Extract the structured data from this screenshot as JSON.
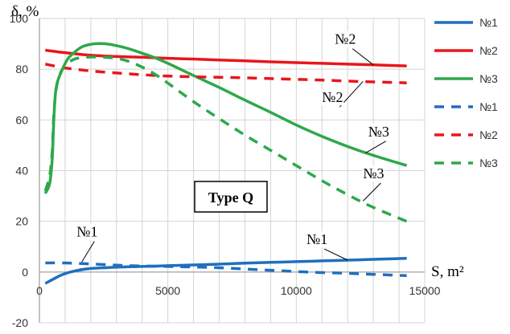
{
  "chart_data": {
    "type": "line",
    "ylabel": "δ, %",
    "xlabel": "S, m²",
    "xlim": [
      0,
      15000
    ],
    "ylim": [
      -20,
      100
    ],
    "x_ticks": [
      "0",
      "5000",
      "10000",
      "15000"
    ],
    "y_ticks": [
      "-20",
      "0",
      "20",
      "40",
      "60",
      "80",
      "100"
    ],
    "grid": "vertical lines every 1000, horizontal lines at major ticks",
    "legend_position": "right",
    "box_label": "Type Q",
    "colors": {
      "blue": "#1f6fbf",
      "red": "#e8161c",
      "green": "#2ea84a"
    },
    "series": [
      {
        "name": "№1",
        "color": "#1f6fbf",
        "dash": "solid",
        "points": [
          [
            230,
            -4.5
          ],
          [
            500,
            -3
          ],
          [
            900,
            -1
          ],
          [
            1400,
            0.5
          ],
          [
            2000,
            1.4
          ],
          [
            3000,
            1.9
          ],
          [
            4000,
            2.2
          ],
          [
            5000,
            2.5
          ],
          [
            6000,
            2.8
          ],
          [
            7000,
            3.1
          ],
          [
            8000,
            3.5
          ],
          [
            9000,
            3.8
          ],
          [
            10000,
            4.1
          ],
          [
            11000,
            4.4
          ],
          [
            12000,
            4.7
          ],
          [
            13000,
            5.0
          ],
          [
            14300,
            5.4
          ]
        ]
      },
      {
        "name": "№2",
        "color": "#e8161c",
        "dash": "solid",
        "points": [
          [
            230,
            87.5
          ],
          [
            1000,
            86.5
          ],
          [
            2000,
            85.5
          ],
          [
            3000,
            85
          ],
          [
            4000,
            84.7
          ],
          [
            5000,
            84.3
          ],
          [
            6000,
            84
          ],
          [
            7000,
            83.6
          ],
          [
            8000,
            83.3
          ],
          [
            9000,
            82.9
          ],
          [
            10000,
            82.6
          ],
          [
            11000,
            82.3
          ],
          [
            12000,
            82
          ],
          [
            13000,
            81.7
          ],
          [
            14300,
            81.3
          ]
        ]
      },
      {
        "name": "№3",
        "color": "#2ea84a",
        "dash": "solid",
        "points": [
          [
            230,
            31
          ],
          [
            400,
            35
          ],
          [
            500,
            45
          ],
          [
            560,
            60
          ],
          [
            620,
            70
          ],
          [
            700,
            75
          ],
          [
            900,
            80
          ],
          [
            1100,
            84
          ],
          [
            1400,
            87
          ],
          [
            1700,
            89
          ],
          [
            2000,
            89.8
          ],
          [
            2300,
            90.1
          ],
          [
            2600,
            90
          ],
          [
            3000,
            89.3
          ],
          [
            3500,
            88
          ],
          [
            4000,
            86.3
          ],
          [
            4500,
            84.5
          ],
          [
            5000,
            82.3
          ],
          [
            6000,
            77.5
          ],
          [
            7000,
            72.8
          ],
          [
            8000,
            67.8
          ],
          [
            9000,
            63
          ],
          [
            10000,
            58
          ],
          [
            11000,
            53.5
          ],
          [
            12000,
            49.5
          ],
          [
            13000,
            46
          ],
          [
            14300,
            42
          ]
        ]
      },
      {
        "name": "№1",
        "color": "#1f6fbf",
        "dash": "dashed",
        "points": [
          [
            230,
            3.6
          ],
          [
            1000,
            3.6
          ],
          [
            2000,
            3.2
          ],
          [
            3000,
            2.7
          ],
          [
            4000,
            2.4
          ],
          [
            5000,
            2.2
          ],
          [
            6000,
            2.0
          ],
          [
            7000,
            1.7
          ],
          [
            8000,
            1.2
          ],
          [
            9000,
            0.7
          ],
          [
            10000,
            0.2
          ],
          [
            11000,
            -0.2
          ],
          [
            12000,
            -0.5
          ],
          [
            13000,
            -0.9
          ],
          [
            14300,
            -1.4
          ]
        ]
      },
      {
        "name": "№2",
        "color": "#e8161c",
        "dash": "dashed",
        "points": [
          [
            230,
            82
          ],
          [
            1000,
            80.5
          ],
          [
            2000,
            79.3
          ],
          [
            3000,
            78.5
          ],
          [
            4000,
            77.8
          ],
          [
            5000,
            77.3
          ],
          [
            6000,
            77
          ],
          [
            7000,
            76.8
          ],
          [
            8000,
            76.6
          ],
          [
            9000,
            76.3
          ],
          [
            10000,
            76
          ],
          [
            11000,
            75.7
          ],
          [
            12000,
            75.3
          ],
          [
            13000,
            75
          ],
          [
            14300,
            74.6
          ]
        ]
      },
      {
        "name": "№3",
        "color": "#2ea84a",
        "dash": "dashed",
        "points": [
          [
            230,
            32
          ],
          [
            400,
            38
          ],
          [
            500,
            48
          ],
          [
            560,
            62
          ],
          [
            650,
            72
          ],
          [
            800,
            78
          ],
          [
            1000,
            81.5
          ],
          [
            1300,
            83.7
          ],
          [
            1600,
            84.5
          ],
          [
            2000,
            84.8
          ],
          [
            2500,
            84.7
          ],
          [
            3000,
            84.3
          ],
          [
            3500,
            83
          ],
          [
            4000,
            80.8
          ],
          [
            4500,
            78
          ],
          [
            5000,
            74.5
          ],
          [
            6000,
            67.2
          ],
          [
            7000,
            60.5
          ],
          [
            8000,
            54
          ],
          [
            9000,
            48
          ],
          [
            10000,
            42
          ],
          [
            11000,
            36
          ],
          [
            12000,
            30.5
          ],
          [
            13000,
            25.5
          ],
          [
            14300,
            20
          ]
        ]
      }
    ],
    "annotations": [
      {
        "text": "№2",
        "x": 11500,
        "y": 90,
        "target": [
          13000,
          81.7
        ]
      },
      {
        "text": "№2",
        "x": 11000,
        "y": 67,
        "target": [
          12600,
          75.2
        ]
      },
      {
        "text": "№3",
        "x": 12800,
        "y": 53.5,
        "target": [
          12700,
          47
        ]
      },
      {
        "text": "№3",
        "x": 12600,
        "y": 37,
        "target": [
          12600,
          28
        ]
      },
      {
        "text": "№1",
        "x": 1450,
        "y": 14,
        "target": [
          1650,
          4
        ]
      },
      {
        "text": "№1",
        "x": 10400,
        "y": 11,
        "target": [
          12000,
          4.7
        ]
      }
    ]
  }
}
